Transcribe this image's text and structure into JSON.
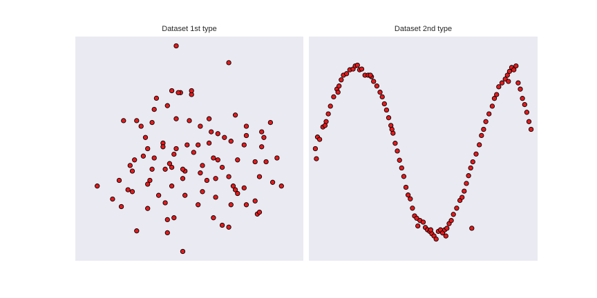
{
  "colors": {
    "figure_background": "#ffffff",
    "axes_background": "#eaeaf2",
    "marker_fill": "#e41a1c",
    "marker_edge": "#000000",
    "title_text": "#262626"
  },
  "chart_data": [
    {
      "type": "scatter",
      "title": "Dataset 1st type",
      "xlabel": "",
      "ylabel": "",
      "grid": false,
      "ticks_visible": false,
      "xlim": [
        -2.6,
        2.6
      ],
      "ylim": [
        -3.0,
        3.0
      ],
      "x": [
        -0.3,
        0.9,
        -0.4,
        -0.2,
        0.05,
        -0.75,
        -0.8,
        -0.5,
        -1.5,
        -1.1,
        -1.2,
        -0.85,
        -1.0,
        -0.6,
        0.0,
        0.25,
        0.5,
        0.65,
        1.05,
        1.3,
        1.65,
        1.85,
        1.7,
        1.3,
        0.8,
        0.45,
        0.2,
        -0.05,
        -0.3,
        -0.6,
        -0.95,
        -1.35,
        -1.25,
        -1.05,
        -0.85,
        -0.45,
        -0.1,
        0.3,
        0.75,
        1.1,
        1.5,
        1.75,
        2.0,
        1.65,
        1.25,
        0.95,
        0.55,
        0.1,
        -0.35,
        -0.8,
        -1.3,
        -1.6,
        -1.4,
        -0.9,
        -0.55,
        -0.4,
        -0.15,
        0.25,
        0.4,
        0.65,
        0.9,
        1.0,
        1.1,
        0.95,
        0.6,
        0.3,
        -0.1,
        -0.55,
        -0.95,
        -2.1,
        -1.75,
        -1.55,
        -1.3,
        -0.95,
        -0.7,
        -0.4,
        -0.15,
        0.2,
        0.55,
        1.05,
        1.25,
        1.3,
        1.5,
        1.55,
        1.6,
        2.1,
        1.9,
        1.6,
        0.45,
        -0.25,
        0.05,
        -0.3,
        -0.5,
        -1.2,
        -0.15,
        0.75,
        0.9,
        -0.35,
        0.6,
        -0.5
      ],
      "y": [
        2.75,
        2.3,
        1.55,
        1.5,
        1.45,
        1.35,
        1.05,
        1.15,
        0.75,
        0.6,
        0.75,
        0.7,
        0.3,
        0.15,
        0.75,
        0.6,
        0.45,
        0.4,
        0.9,
        0.6,
        0.45,
        0.7,
        0.3,
        0.35,
        0.3,
        0.15,
        0.1,
        0.1,
        0.0,
        0.05,
        0.0,
        -0.45,
        -0.3,
        -0.2,
        -0.55,
        -0.4,
        -0.6,
        -0.45,
        -0.5,
        -0.3,
        -0.35,
        -0.35,
        -0.25,
        0.05,
        0.1,
        0.2,
        -0.25,
        -0.1,
        -0.15,
        -0.25,
        -0.6,
        -0.85,
        -1.1,
        -0.85,
        -0.55,
        -0.5,
        -0.8,
        -0.65,
        -0.85,
        -0.3,
        -0.75,
        -1.0,
        -1.2,
        -1.5,
        -1.3,
        -1.15,
        -1.25,
        -1.45,
        -1.6,
        -1.0,
        -1.35,
        -1.55,
        -1.15,
        -0.95,
        -1.25,
        -1.0,
        -0.55,
        -1.5,
        -1.85,
        -1.1,
        -1.05,
        -1.5,
        -1.4,
        -1.75,
        -1.7,
        -1.0,
        -0.9,
        -0.75,
        0.8,
        1.5,
        1.55,
        0.8,
        -1.9,
        -2.2,
        -2.75,
        -2.05,
        -2.1,
        -1.85,
        -0.8,
        -2.25
      ],
      "marker_fill": "#e41a1c",
      "marker_edge": "#000000"
    },
    {
      "type": "scatter",
      "title": "Dataset 2nd type",
      "xlabel": "",
      "ylabel": "",
      "grid": false,
      "ticks_visible": false,
      "xlim": [
        -0.3,
        10.3
      ],
      "ylim": [
        -1.4,
        1.5
      ],
      "x": [
        0.0,
        0.1,
        0.2,
        0.35,
        0.5,
        0.6,
        0.7,
        0.85,
        1.0,
        1.1,
        1.2,
        1.3,
        1.45,
        1.6,
        1.75,
        1.85,
        1.95,
        2.05,
        2.15,
        2.3,
        2.45,
        2.6,
        2.7,
        2.85,
        3.0,
        3.1,
        3.2,
        3.3,
        3.4,
        3.5,
        3.6,
        3.7,
        3.8,
        3.9,
        4.0,
        4.1,
        4.2,
        4.3,
        4.4,
        4.5,
        4.6,
        4.7,
        4.85,
        5.0,
        5.1,
        5.2,
        5.3,
        5.4,
        5.5,
        5.6,
        5.7,
        5.8,
        5.9,
        6.0,
        6.1,
        6.2,
        6.3,
        6.4,
        6.55,
        6.7,
        6.8,
        6.9,
        7.0,
        7.1,
        7.2,
        7.3,
        7.45,
        7.6,
        7.7,
        7.8,
        7.9,
        8.05,
        8.2,
        8.3,
        8.4,
        8.5,
        8.65,
        8.8,
        8.9,
        9.0,
        9.1,
        9.2,
        9.3,
        9.4,
        9.5,
        9.6,
        9.7,
        9.8,
        9.9,
        10.0,
        0.05,
        1.05,
        2.55,
        4.75,
        6.05,
        7.25,
        8.95,
        3.55,
        5.35,
        0.45
      ],
      "y": [
        0.05,
        0.2,
        0.17,
        0.33,
        0.4,
        0.5,
        0.6,
        0.72,
        0.82,
        0.86,
        0.94,
        1.0,
        1.02,
        1.07,
        1.08,
        1.12,
        1.13,
        1.07,
        1.08,
        1.0,
        1.0,
        0.98,
        0.92,
        0.86,
        0.78,
        0.72,
        0.63,
        0.55,
        0.45,
        0.35,
        0.25,
        0.12,
        0.02,
        -0.1,
        -0.2,
        -0.31,
        -0.45,
        -0.55,
        -0.6,
        -0.72,
        -0.82,
        -0.85,
        -0.88,
        -0.9,
        -0.97,
        -1.0,
        -1.02,
        -1.05,
        -1.08,
        -1.12,
        -1.02,
        -1.0,
        -1.04,
        -1.0,
        -0.98,
        -0.92,
        -0.88,
        -0.8,
        -0.72,
        -0.62,
        -0.58,
        -0.5,
        -0.4,
        -0.3,
        -0.2,
        -0.12,
        -0.02,
        0.1,
        0.22,
        0.3,
        0.4,
        0.5,
        0.6,
        0.7,
        0.75,
        0.85,
        0.9,
        0.95,
        1.0,
        1.05,
        1.1,
        1.07,
        1.12,
        0.9,
        0.82,
        0.7,
        0.62,
        0.52,
        0.4,
        0.3,
        -0.08,
        0.78,
        1.0,
        -0.95,
        -1.08,
        -0.98,
        0.92,
        0.3,
        -1.0,
        0.35
      ]
    }
  ]
}
